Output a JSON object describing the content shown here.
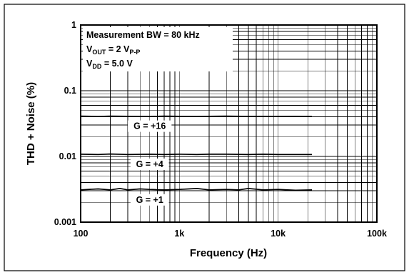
{
  "chart_data": {
    "type": "line",
    "xlabel": "Frequency (Hz)",
    "ylabel": "THD + Noise (%)",
    "x_scale": "log",
    "y_scale": "log",
    "xlim": [
      100,
      100000
    ],
    "ylim": [
      0.001,
      1
    ],
    "grid": true,
    "x_ticks": [
      {
        "value": 100,
        "label": "100"
      },
      {
        "value": 1000,
        "label": "1k"
      },
      {
        "value": 10000,
        "label": "10k"
      },
      {
        "value": 100000,
        "label": "100k"
      }
    ],
    "y_ticks": [
      {
        "value": 1,
        "label": "1"
      },
      {
        "value": 0.1,
        "label": "0.1"
      },
      {
        "value": 0.01,
        "label": "0.01"
      },
      {
        "value": 0.001,
        "label": "0.001"
      }
    ],
    "conditions": {
      "line1": "Measurement BW = 80 kHz",
      "line2": {
        "main": "V",
        "sub": "OUT",
        "mid": " = 2 V",
        "sub2": "P-P"
      },
      "line3": {
        "main": "V",
        "sub": "DD",
        "mid": " = 5.0 V"
      }
    },
    "series": [
      {
        "name": "G = +16",
        "x": [
          100,
          150,
          200,
          300,
          500,
          700,
          1000,
          1500,
          2000,
          3000,
          5000,
          7000,
          10000,
          15000,
          22000
        ],
        "y": [
          0.041,
          0.0405,
          0.041,
          0.0408,
          0.0405,
          0.041,
          0.0407,
          0.0405,
          0.0408,
          0.041,
          0.0406,
          0.0408,
          0.0406,
          0.0407,
          0.0405
        ]
      },
      {
        "name": "G = +4",
        "x": [
          100,
          150,
          200,
          300,
          500,
          700,
          1000,
          1500,
          2000,
          3000,
          5000,
          7000,
          10000,
          15000,
          22000
        ],
        "y": [
          0.0108,
          0.0107,
          0.0109,
          0.0107,
          0.0108,
          0.0107,
          0.0108,
          0.0107,
          0.0108,
          0.0108,
          0.0107,
          0.0108,
          0.0107,
          0.0107,
          0.0107
        ]
      },
      {
        "name": "G = +1",
        "x": [
          100,
          150,
          200,
          250,
          300,
          400,
          500,
          700,
          1000,
          1500,
          2000,
          3000,
          4000,
          5000,
          7000,
          10000,
          15000,
          22000
        ],
        "y": [
          0.0031,
          0.0032,
          0.0031,
          0.00325,
          0.0031,
          0.0032,
          0.00315,
          0.0031,
          0.00315,
          0.00325,
          0.0031,
          0.00315,
          0.0031,
          0.00325,
          0.0031,
          0.00315,
          0.00305,
          0.0031
        ]
      }
    ]
  }
}
